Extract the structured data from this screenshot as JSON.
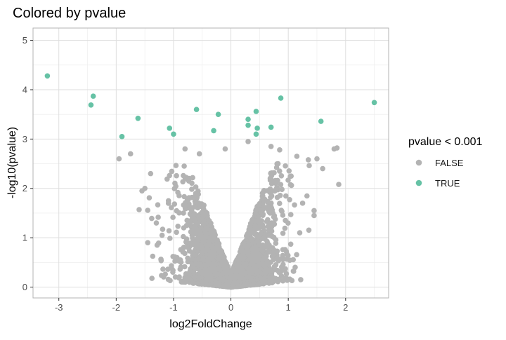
{
  "chart_data": {
    "type": "scatter",
    "title": "Colored by pvalue",
    "xlabel": "log2FoldChange",
    "ylabel": "-log10(pvalue)",
    "xlim": [
      -3.45,
      2.75
    ],
    "ylim": [
      -0.22,
      5.25
    ],
    "x_ticks": [
      -3,
      -2,
      -1,
      0,
      1,
      2
    ],
    "x_tick_labels": [
      "-3",
      "-2",
      "-1",
      "0",
      "1",
      "2"
    ],
    "y_ticks": [
      0,
      1,
      2,
      3,
      4,
      5
    ],
    "y_tick_labels": [
      "0",
      "1",
      "2",
      "3",
      "4",
      "5"
    ],
    "grid": true,
    "legend": {
      "title": "pvalue < 0.001",
      "placement": "right",
      "entries": [
        {
          "label": "FALSE",
          "color": "#b3b3b3"
        },
        {
          "label": "TRUE",
          "color": "#66c2a5"
        }
      ]
    },
    "series": [
      {
        "name": "TRUE",
        "color": "#66c2a5",
        "points": [
          [
            -3.2,
            4.28
          ],
          [
            -2.4,
            3.87
          ],
          [
            -2.44,
            3.69
          ],
          [
            -1.62,
            3.42
          ],
          [
            -1.9,
            3.05
          ],
          [
            -1.07,
            3.22
          ],
          [
            -1.0,
            3.1
          ],
          [
            -0.6,
            3.6
          ],
          [
            -0.22,
            3.5
          ],
          [
            -0.3,
            3.17
          ],
          [
            0.3,
            3.4
          ],
          [
            0.3,
            3.28
          ],
          [
            0.44,
            3.56
          ],
          [
            0.46,
            3.22
          ],
          [
            0.44,
            3.1
          ],
          [
            0.87,
            3.83
          ],
          [
            0.7,
            3.24
          ],
          [
            1.57,
            3.36
          ],
          [
            2.5,
            3.74
          ]
        ]
      },
      {
        "name": "FALSE",
        "color": "#b3b3b3",
        "points": [
          [
            -1.95,
            2.6
          ],
          [
            -1.75,
            2.7
          ],
          [
            -1.5,
            2.0
          ],
          [
            -1.6,
            1.57
          ],
          [
            -0.8,
            2.8
          ],
          [
            -0.55,
            2.7
          ],
          [
            -0.1,
            2.8
          ],
          [
            0.3,
            2.95
          ],
          [
            0.7,
            2.85
          ],
          [
            0.85,
            2.78
          ],
          [
            1.15,
            2.65
          ],
          [
            1.35,
            2.58
          ],
          [
            1.5,
            2.6
          ],
          [
            1.6,
            2.4
          ],
          [
            1.8,
            2.8
          ],
          [
            1.85,
            2.82
          ],
          [
            1.88,
            2.08
          ],
          [
            1.05,
            2.25
          ],
          [
            1.25,
            1.7
          ],
          [
            1.45,
            1.55
          ],
          [
            1.45,
            1.45
          ],
          [
            -1.3,
            1.3
          ],
          [
            -1.45,
            0.9
          ],
          [
            -1.2,
            1.05
          ],
          [
            0.95,
            1.35
          ],
          [
            1.2,
            1.1
          ],
          [
            -1.55,
            1.95
          ],
          [
            -1.4,
            2.3
          ]
        ]
      }
    ],
    "cloud": {
      "series": "FALSE",
      "description_free": true,
      "x_min": -1.6,
      "x_max": 1.55,
      "y_min": 0.0,
      "y_max": 2.5,
      "count": 2600
    }
  }
}
